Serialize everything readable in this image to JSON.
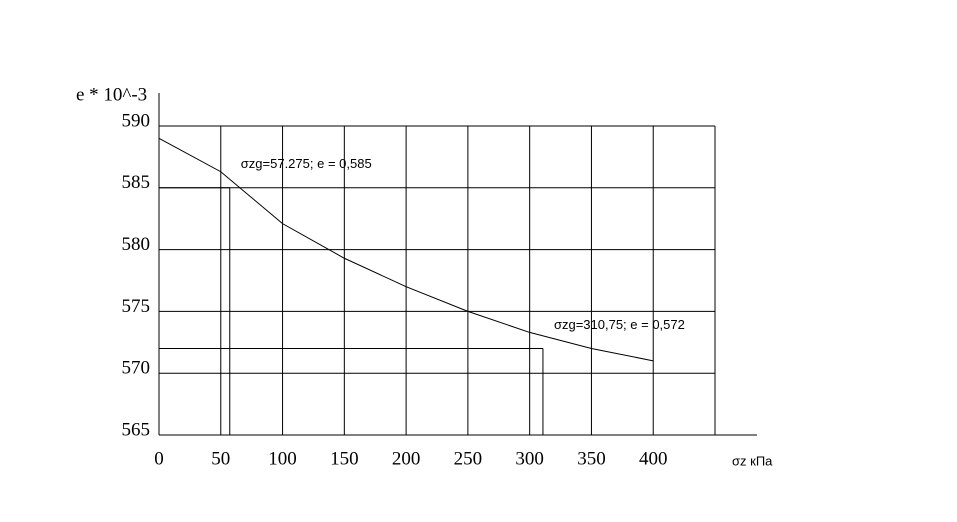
{
  "chart_data": {
    "type": "line",
    "y_label": "e * 10^-3",
    "x_label": "σz  кПа",
    "x": [
      0,
      50,
      100,
      150,
      200,
      250,
      300,
      350,
      400
    ],
    "series": [
      {
        "color": "#000000",
        "values": [
          589.0,
          586.3,
          582.1,
          579.3,
          577.0,
          575.0,
          573.3,
          572.0,
          571.0
        ]
      }
    ],
    "xlim": [
      0,
      450
    ],
    "ylim": [
      565,
      590
    ],
    "xticks": [
      0,
      50,
      100,
      150,
      200,
      250,
      300,
      350,
      400
    ],
    "yticks": [
      565,
      570,
      575,
      580,
      585,
      590
    ],
    "grid": true,
    "annotations": [
      {
        "text": "σzg=57.275;  e  =  0,585",
        "x": 57.275,
        "y": 585
      },
      {
        "text": "σzg=310,75;  e  =  0,572",
        "x": 310.75,
        "y": 572
      }
    ]
  }
}
